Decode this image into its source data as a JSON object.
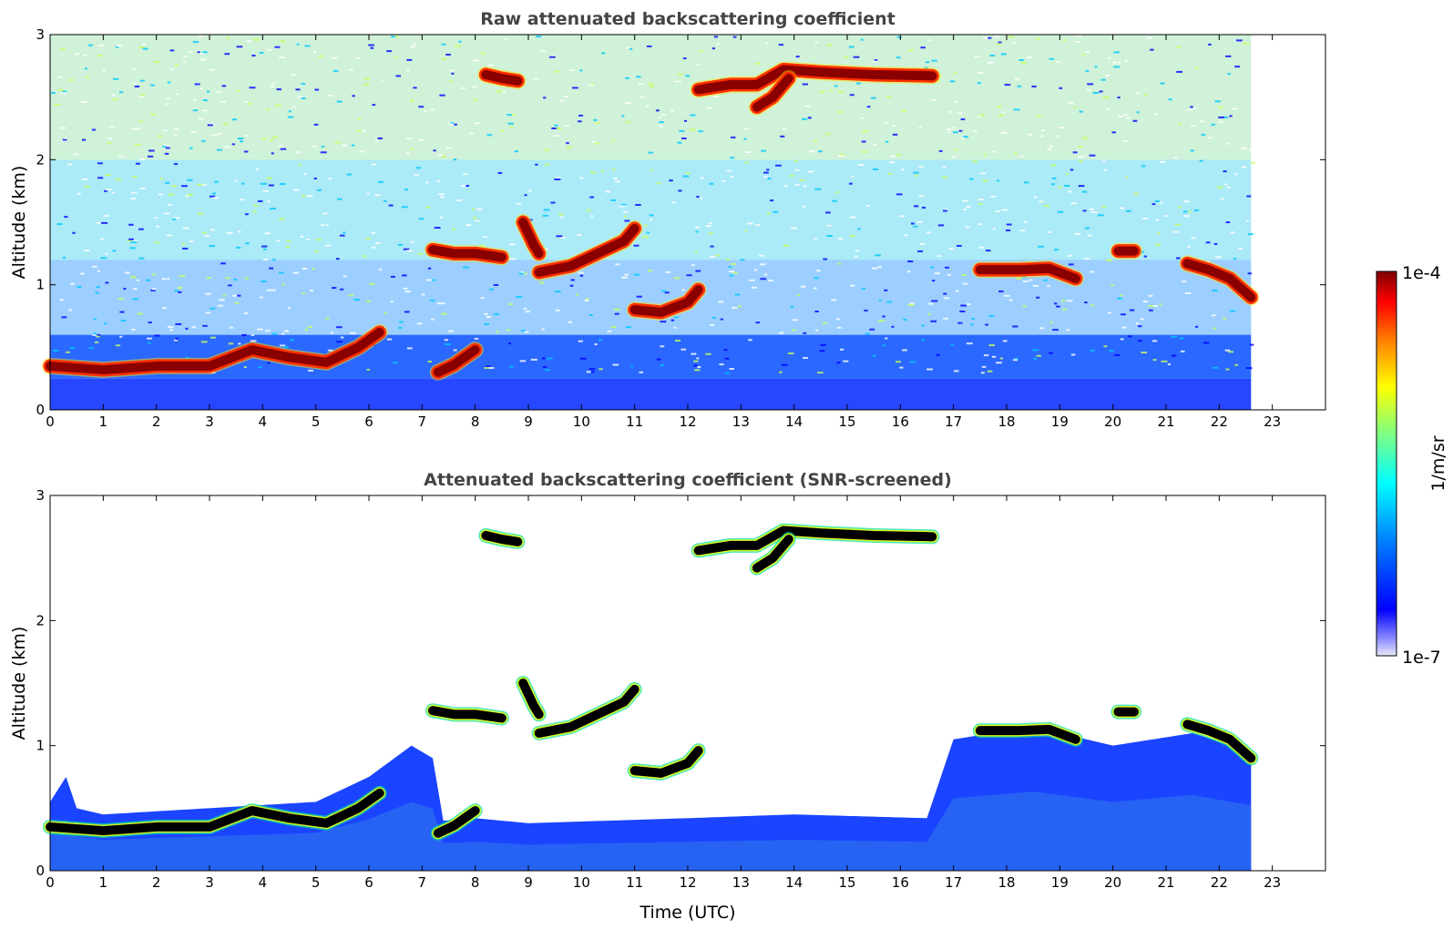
{
  "chart_data": [
    {
      "type": "heatmap",
      "title": "Raw attenuated backscattering coefficient",
      "xlabel": "",
      "ylabel": "Altitude (km)",
      "x_ticks": [
        "0",
        "1",
        "2",
        "3",
        "4",
        "5",
        "6",
        "7",
        "8",
        "9",
        "10",
        "11",
        "12",
        "13",
        "14",
        "15",
        "16",
        "17",
        "18",
        "19",
        "20",
        "21",
        "22",
        "23"
      ],
      "y_ticks": [
        "0",
        "1",
        "2",
        "3"
      ],
      "xlim": [
        0,
        24
      ],
      "ylim": [
        0,
        3
      ],
      "data_xlim": [
        0,
        22.6
      ],
      "screened": false,
      "cloud_layers": [
        {
          "x": [
            0.0,
            1.0,
            2.0,
            3.0,
            3.8,
            4.5,
            5.2,
            5.8,
            6.2
          ],
          "y": [
            0.35,
            0.32,
            0.35,
            0.35,
            0.48,
            0.42,
            0.38,
            0.5,
            0.62
          ]
        },
        {
          "x": [
            7.3,
            7.6,
            7.9,
            8.0
          ],
          "y": [
            0.3,
            0.36,
            0.45,
            0.48
          ]
        },
        {
          "x": [
            7.2,
            7.6,
            8.0,
            8.5
          ],
          "y": [
            1.28,
            1.25,
            1.25,
            1.22
          ]
        },
        {
          "x": [
            8.2,
            8.5,
            8.8
          ],
          "y": [
            2.68,
            2.65,
            2.63
          ]
        },
        {
          "x": [
            8.9,
            9.1,
            9.2
          ],
          "y": [
            1.5,
            1.32,
            1.25
          ]
        },
        {
          "x": [
            9.2,
            9.8,
            10.3,
            10.8,
            11.0
          ],
          "y": [
            1.1,
            1.15,
            1.25,
            1.35,
            1.45
          ]
        },
        {
          "x": [
            11.0,
            11.5,
            12.0,
            12.2
          ],
          "y": [
            0.8,
            0.78,
            0.86,
            0.96
          ]
        },
        {
          "x": [
            12.2,
            12.8,
            13.3,
            13.8,
            14.5,
            15.5,
            16.6
          ],
          "y": [
            2.56,
            2.6,
            2.6,
            2.72,
            2.7,
            2.68,
            2.67
          ]
        },
        {
          "x": [
            13.3,
            13.6,
            13.9
          ],
          "y": [
            2.42,
            2.5,
            2.65
          ]
        },
        {
          "x": [
            17.5,
            18.2,
            18.8,
            19.3
          ],
          "y": [
            1.12,
            1.12,
            1.13,
            1.05
          ]
        },
        {
          "x": [
            20.1,
            20.4
          ],
          "y": [
            1.27,
            1.27
          ]
        },
        {
          "x": [
            21.4,
            21.8,
            22.2,
            22.6
          ],
          "y": [
            1.17,
            1.12,
            1.05,
            0.9
          ]
        }
      ]
    },
    {
      "type": "heatmap",
      "title": "Attenuated backscattering coefficient (SNR-screened)",
      "xlabel": "Time (UTC)",
      "ylabel": "Altitude (km)",
      "x_ticks": [
        "0",
        "1",
        "2",
        "3",
        "4",
        "5",
        "6",
        "7",
        "8",
        "9",
        "10",
        "11",
        "12",
        "13",
        "14",
        "15",
        "16",
        "17",
        "18",
        "19",
        "20",
        "21",
        "22",
        "23"
      ],
      "y_ticks": [
        "0",
        "1",
        "2",
        "3"
      ],
      "xlim": [
        0,
        24
      ],
      "ylim": [
        0,
        3
      ],
      "data_xlim": [
        0,
        22.6
      ],
      "screened": true,
      "boundary_layer_top": {
        "x": [
          0.0,
          0.3,
          0.5,
          1.0,
          3.0,
          5.0,
          6.0,
          6.8,
          7.2,
          7.4,
          8.0,
          9.0,
          12.0,
          14.0,
          16.5,
          17.0,
          18.5,
          20.0,
          21.5,
          22.6
        ],
        "y": [
          0.55,
          0.75,
          0.5,
          0.45,
          0.5,
          0.55,
          0.75,
          1.0,
          0.9,
          0.4,
          0.42,
          0.38,
          0.42,
          0.45,
          0.42,
          1.05,
          1.15,
          1.0,
          1.1,
          0.95
        ]
      },
      "cloud_layers": [
        {
          "x": [
            0.0,
            1.0,
            2.0,
            3.0,
            3.8,
            4.5,
            5.2,
            5.8,
            6.2
          ],
          "y": [
            0.35,
            0.32,
            0.35,
            0.35,
            0.48,
            0.42,
            0.38,
            0.5,
            0.62
          ]
        },
        {
          "x": [
            7.3,
            7.6,
            7.9,
            8.0
          ],
          "y": [
            0.3,
            0.36,
            0.45,
            0.48
          ]
        },
        {
          "x": [
            7.2,
            7.6,
            8.0,
            8.5
          ],
          "y": [
            1.28,
            1.25,
            1.25,
            1.22
          ]
        },
        {
          "x": [
            8.2,
            8.5,
            8.8
          ],
          "y": [
            2.68,
            2.65,
            2.63
          ]
        },
        {
          "x": [
            8.9,
            9.1,
            9.2
          ],
          "y": [
            1.5,
            1.32,
            1.25
          ]
        },
        {
          "x": [
            9.2,
            9.8,
            10.3,
            10.8,
            11.0
          ],
          "y": [
            1.1,
            1.15,
            1.25,
            1.35,
            1.45
          ]
        },
        {
          "x": [
            11.0,
            11.5,
            12.0,
            12.2
          ],
          "y": [
            0.8,
            0.78,
            0.86,
            0.96
          ]
        },
        {
          "x": [
            12.2,
            12.8,
            13.3,
            13.8,
            14.5,
            15.5,
            16.6
          ],
          "y": [
            2.56,
            2.6,
            2.6,
            2.72,
            2.7,
            2.68,
            2.67
          ]
        },
        {
          "x": [
            13.3,
            13.6,
            13.9
          ],
          "y": [
            2.42,
            2.5,
            2.65
          ]
        },
        {
          "x": [
            17.5,
            18.2,
            18.8,
            19.3
          ],
          "y": [
            1.12,
            1.12,
            1.13,
            1.05
          ]
        },
        {
          "x": [
            20.1,
            20.4
          ],
          "y": [
            1.27,
            1.27
          ]
        },
        {
          "x": [
            21.4,
            21.8,
            22.2,
            22.6
          ],
          "y": [
            1.17,
            1.12,
            1.05,
            0.9
          ]
        }
      ]
    }
  ],
  "colorbar": {
    "label": "1/m/sr",
    "max_label": "1e-4",
    "min_label": "1e-7",
    "colors": [
      "#e8e8f8",
      "#0000ff",
      "#0080ff",
      "#00ffff",
      "#80ff80",
      "#ffff00",
      "#ff8000",
      "#ff0000",
      "#800000"
    ]
  }
}
